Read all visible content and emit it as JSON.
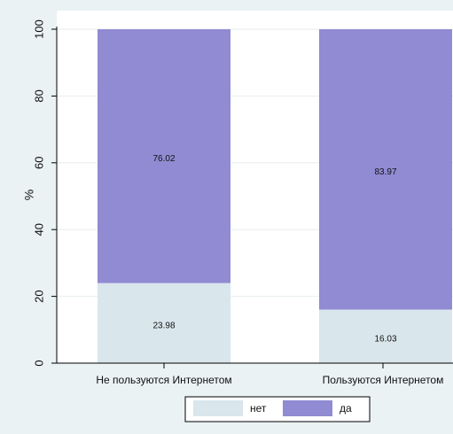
{
  "colors": {
    "background": "#eaf2f3",
    "plot_background": "#ffffff",
    "net": "#d9e6ec",
    "da": "#918bd3",
    "axis": "#000000",
    "text": "#111111"
  },
  "chart_data": {
    "type": "bar",
    "stacked": true,
    "title": "",
    "xlabel": "",
    "ylabel": "%",
    "ylim": [
      0,
      100
    ],
    "yticks": [
      "0",
      "20",
      "40",
      "60",
      "80",
      "100"
    ],
    "grid": true,
    "legend_position": "bottom",
    "categories": [
      "Не пользуются Интернетом",
      "Пользуются Интернетом"
    ],
    "series": [
      {
        "name": "нет",
        "color": "#d9e6ec",
        "values": [
          23.98,
          16.03
        ],
        "labels": [
          "23.98",
          "16.03"
        ]
      },
      {
        "name": "да",
        "color": "#918bd3",
        "values": [
          76.02,
          83.97
        ],
        "labels": [
          "76.02",
          "83.97"
        ]
      }
    ]
  }
}
